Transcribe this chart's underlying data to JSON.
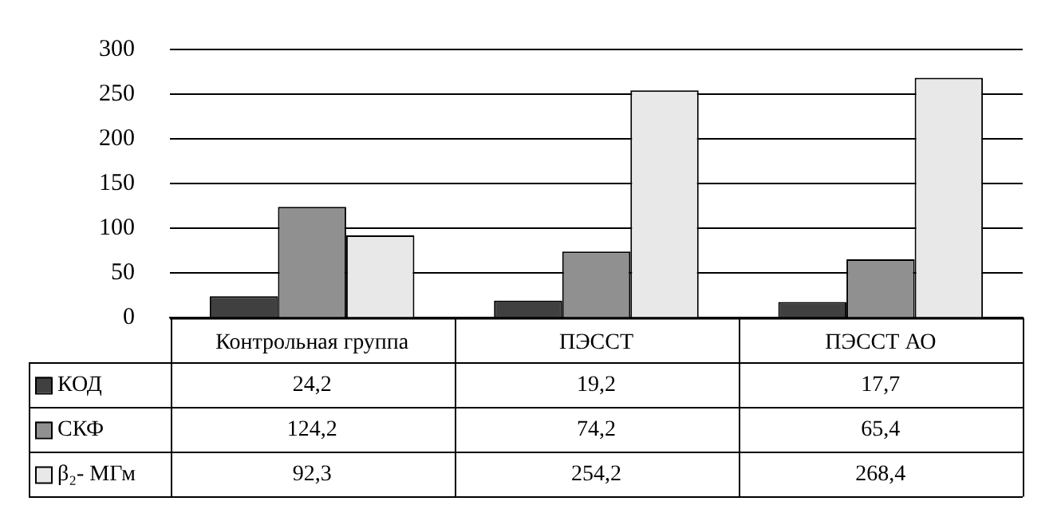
{
  "chart_data": {
    "type": "bar",
    "categories": [
      "Контрольная группа",
      "ПЭССТ",
      "ПЭССТ АО"
    ],
    "series": [
      {
        "name": "КОД",
        "color": "#404040",
        "values": [
          24.2,
          19.2,
          17.7
        ],
        "value_labels": [
          "24,2",
          "19,2",
          "17,7"
        ]
      },
      {
        "name": "СКФ",
        "color": "#909090",
        "values": [
          124.2,
          74.2,
          65.4
        ],
        "value_labels": [
          "124,2",
          "74,2",
          "65,4"
        ]
      },
      {
        "name": "β₂- МГм",
        "color": "#e8e8e8",
        "values": [
          92.3,
          254.2,
          268.4
        ],
        "value_labels": [
          "92,3",
          "254,2",
          "268,4"
        ]
      }
    ],
    "ylim": [
      0,
      300
    ],
    "yticks": [
      0,
      50,
      100,
      150,
      200,
      250,
      300
    ],
    "grid": "y",
    "legend": "bottom left"
  }
}
